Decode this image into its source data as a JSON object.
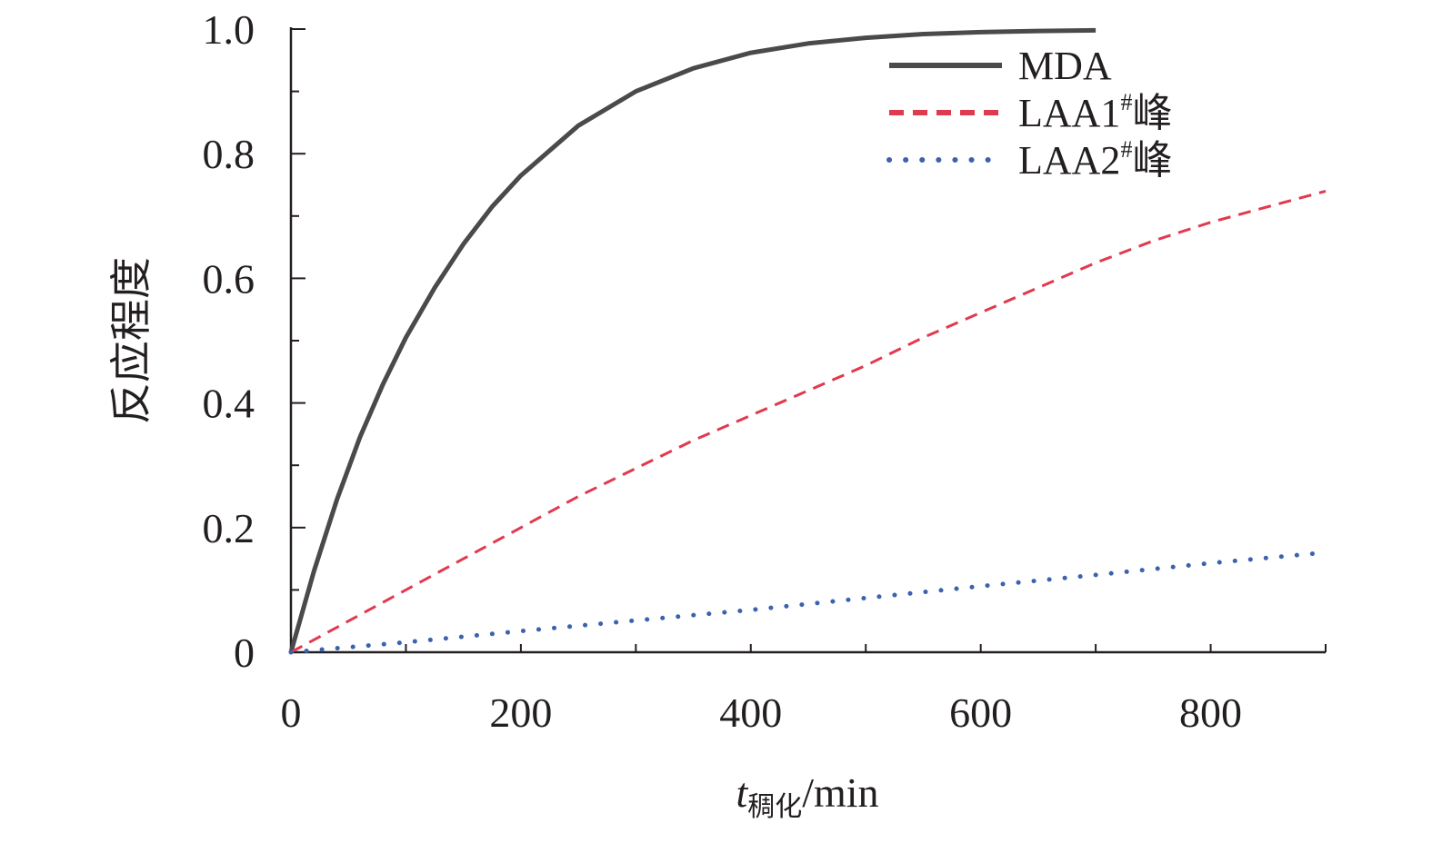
{
  "chart_data": {
    "type": "line",
    "xlabel": {
      "var": "t",
      "sub": "稠化",
      "unit": "/min"
    },
    "ylabel": "反应程度",
    "xlim": [
      0,
      900
    ],
    "ylim": [
      0,
      1.0
    ],
    "x_ticks": [
      {
        "value": 0,
        "label": "0"
      },
      {
        "value": 200,
        "label": "200"
      },
      {
        "value": 400,
        "label": "400"
      },
      {
        "value": 600,
        "label": "600"
      },
      {
        "value": 800,
        "label": "800"
      }
    ],
    "y_ticks": [
      {
        "value": 0,
        "label": "0"
      },
      {
        "value": 0.2,
        "label": "0.2"
      },
      {
        "value": 0.4,
        "label": "0.4"
      },
      {
        "value": 0.6,
        "label": "0.6"
      },
      {
        "value": 0.8,
        "label": "0.8"
      },
      {
        "value": 1.0,
        "label": "1.0"
      }
    ],
    "grid": false,
    "legend_position": "top-right",
    "series": [
      {
        "name": "MDA",
        "name_sup": "",
        "name_suffix": "",
        "color": "#4a4a4a",
        "style": "solid",
        "x": [
          0,
          20,
          40,
          60,
          80,
          100,
          125,
          150,
          175,
          200,
          250,
          300,
          350,
          400,
          450,
          500,
          550,
          600,
          650,
          700
        ],
        "y": [
          0,
          0.13,
          0.245,
          0.345,
          0.43,
          0.505,
          0.585,
          0.655,
          0.715,
          0.765,
          0.845,
          0.9,
          0.937,
          0.962,
          0.977,
          0.986,
          0.992,
          0.995,
          0.997,
          0.998
        ]
      },
      {
        "name": "LAA1",
        "name_sup": "#",
        "name_suffix": "峰",
        "color": "#e03a4e",
        "style": "dashed",
        "x": [
          0,
          25,
          50,
          100,
          150,
          200,
          250,
          300,
          350,
          400,
          450,
          500,
          550,
          600,
          650,
          700,
          750,
          800,
          850,
          900
        ],
        "y": [
          0,
          0.025,
          0.05,
          0.1,
          0.15,
          0.2,
          0.25,
          0.295,
          0.34,
          0.38,
          0.42,
          0.46,
          0.505,
          0.545,
          0.585,
          0.625,
          0.66,
          0.69,
          0.715,
          0.74
        ]
      },
      {
        "name": "LAA2",
        "name_sup": "#",
        "name_suffix": "峰",
        "color": "#3d62ad",
        "style": "dotted",
        "x": [
          0,
          100,
          200,
          300,
          400,
          500,
          600,
          700,
          800,
          900
        ],
        "y": [
          0,
          0.016,
          0.034,
          0.051,
          0.068,
          0.087,
          0.106,
          0.124,
          0.143,
          0.16
        ]
      }
    ]
  }
}
